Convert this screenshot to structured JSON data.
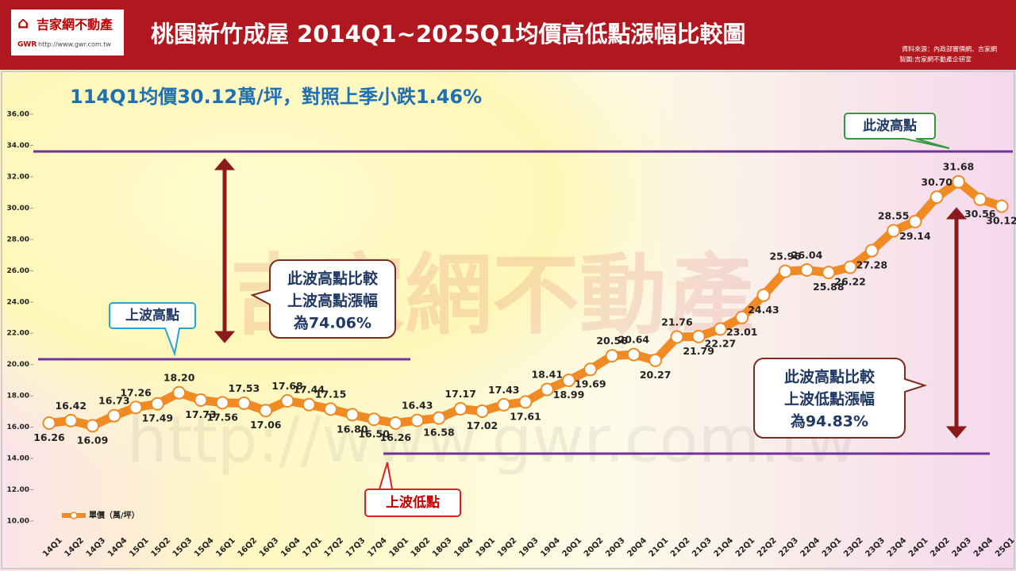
{
  "header": {
    "logo_text": "吉家網不動產",
    "logo_abbr": "GWR",
    "logo_url": "http://www.gwr.com.tw",
    "source": [
      "資料來源：內政部實價網、吉家網",
      "製圖:吉家網不動產企研室"
    ]
  },
  "chart_data": {
    "type": "line",
    "title": "桃園新竹成屋 2014Q1~2025Q1均價高低點漲幅比較圖",
    "subtitle": "114Q1均價30.12萬/坪，對照上季小跌1.46%",
    "categories": [
      "14Q1",
      "14Q2",
      "14Q3",
      "14Q4",
      "15Q1",
      "15Q2",
      "15Q3",
      "15Q4",
      "16Q1",
      "16Q2",
      "16Q3",
      "16Q4",
      "17Q1",
      "17Q2",
      "17Q3",
      "17Q4",
      "18Q1",
      "18Q2",
      "18Q3",
      "18Q4",
      "19Q1",
      "19Q2",
      "19Q3",
      "19Q4",
      "20Q1",
      "20Q2",
      "20Q3",
      "20Q4",
      "21Q1",
      "21Q2",
      "21Q3",
      "21Q4",
      "22Q1",
      "22Q2",
      "22Q3",
      "22Q4",
      "23Q1",
      "23Q2",
      "23Q3",
      "23Q4",
      "24Q1",
      "24Q2",
      "24Q3",
      "24Q4",
      "25Q1"
    ],
    "series": [
      {
        "name": "單價（萬/坪）",
        "color": "#f08a24",
        "values": [
          16.26,
          16.42,
          16.09,
          16.73,
          17.26,
          17.49,
          18.2,
          17.73,
          17.56,
          17.53,
          17.06,
          17.68,
          17.44,
          17.15,
          16.8,
          16.5,
          16.26,
          16.43,
          16.58,
          17.17,
          17.02,
          17.43,
          17.61,
          18.41,
          18.99,
          19.69,
          20.56,
          20.64,
          20.27,
          21.76,
          21.79,
          22.27,
          23.01,
          24.43,
          25.96,
          26.04,
          25.88,
          26.22,
          27.28,
          28.55,
          29.14,
          30.7,
          31.68,
          30.56,
          30.12
        ],
        "value_labels": [
          "16.26",
          "16.42",
          "16.09",
          "16.73",
          "17.26",
          "17.49",
          "18.20",
          "17.73",
          "17.56",
          "17.53",
          "17.06",
          "17.68",
          "17.44",
          "17.15",
          "16.80",
          "16.50",
          "16.26",
          "16.43",
          "16.58",
          "17.17",
          "17.02",
          "17.43",
          "17.61",
          "18.41",
          "18.99",
          "19.69",
          "20.56",
          "20.64",
          "20.27",
          "21.76",
          "21.79",
          "22.27",
          "23.01",
          "24.43",
          "25.96",
          "26.04",
          "25.88",
          "26.22",
          "27.28",
          "28.55",
          "29.14",
          "30.70",
          "31.68",
          "30.56",
          "30.12"
        ]
      }
    ],
    "ylim": [
      10,
      36
    ],
    "yticks": [
      {
        "value": 10,
        "label": "10.00"
      },
      {
        "value": 12,
        "label": "12.00"
      },
      {
        "value": 14,
        "label": "14.00"
      },
      {
        "value": 16,
        "label": "16.00"
      },
      {
        "value": 18,
        "label": "18.00"
      },
      {
        "value": 20,
        "label": "20.00"
      },
      {
        "value": 22,
        "label": "22.00"
      },
      {
        "value": 24,
        "label": "24.00"
      },
      {
        "value": 26,
        "label": "26.00"
      },
      {
        "value": 28,
        "label": "28.00"
      },
      {
        "value": 30,
        "label": "30.00"
      },
      {
        "value": 32,
        "label": "32.00"
      },
      {
        "value": 34,
        "label": "34.00"
      },
      {
        "value": 36,
        "label": "36.00"
      }
    ],
    "grid": false,
    "annotations": {
      "current_high": "此波高點",
      "previous_high": "上波高點",
      "previous_low": "上波低點",
      "callout_high": [
        "此波高點比較",
        "上波高點漲幅",
        "為74.06%"
      ],
      "callout_low": [
        "此波高點比較",
        "上波低點漲幅",
        "為94.83%"
      ]
    }
  }
}
